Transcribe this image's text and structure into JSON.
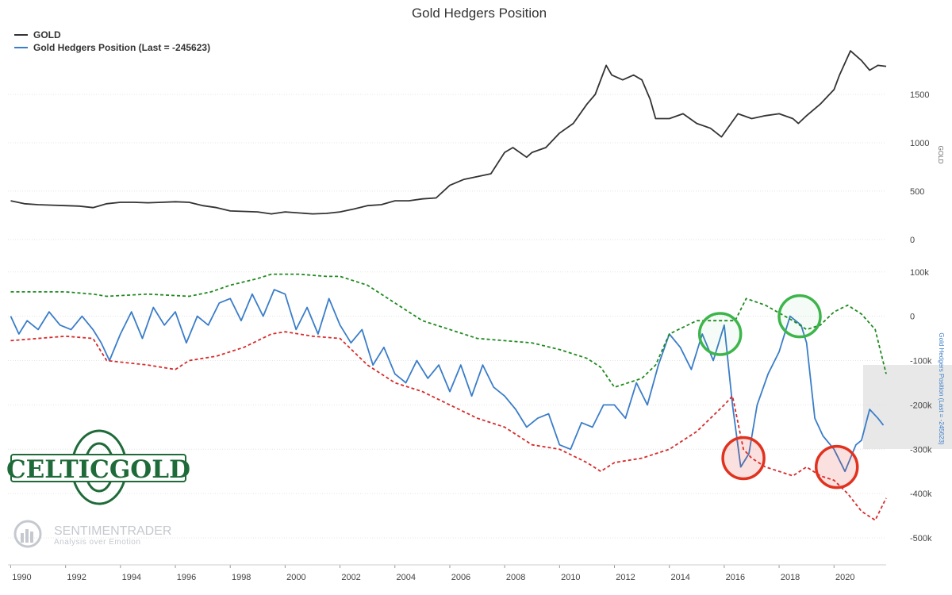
{
  "chart_data": {
    "type": "line",
    "title": "Gold Hedgers Position",
    "legend": [
      {
        "name": "GOLD",
        "color": "#333333"
      },
      {
        "name": "Gold Hedgers Position (Last = -245623)",
        "color": "#3a7dc9"
      }
    ],
    "legend_placement": "top-left",
    "grid": true,
    "x_ticks": [
      "1990",
      "1992",
      "1994",
      "1996",
      "1998",
      "2000",
      "2002",
      "2004",
      "2006",
      "2008",
      "2010",
      "2012",
      "2014",
      "2016",
      "2018",
      "2020"
    ],
    "xlim": [
      1989.9,
      2021.9
    ],
    "panels": [
      {
        "id": "gold",
        "ylabel": "GOLD",
        "ylim": [
          -50,
          2000
        ],
        "y_ticks": [
          "0",
          "500",
          "1000",
          "1500"
        ],
        "series": [
          {
            "name": "GOLD",
            "color": "#333333",
            "x": [
              1990.0,
              1990.5,
              1991.0,
              1991.5,
              1992.0,
              1992.5,
              1993.0,
              1993.5,
              1994.0,
              1994.5,
              1995.0,
              1995.5,
              1996.0,
              1996.5,
              1997.0,
              1997.5,
              1998.0,
              1998.5,
              1999.0,
              1999.5,
              2000.0,
              2000.5,
              2001.0,
              2001.5,
              2002.0,
              2002.5,
              2003.0,
              2003.5,
              2004.0,
              2004.5,
              2005.0,
              2005.5,
              2006.0,
              2006.5,
              2007.0,
              2007.5,
              2008.0,
              2008.3,
              2008.8,
              2009.0,
              2009.5,
              2010.0,
              2010.5,
              2011.0,
              2011.3,
              2011.7,
              2011.9,
              2012.3,
              2012.7,
              2013.0,
              2013.3,
              2013.5,
              2014.0,
              2014.5,
              2015.0,
              2015.5,
              2015.9,
              2016.5,
              2017.0,
              2017.5,
              2018.0,
              2018.5,
              2018.7,
              2019.0,
              2019.5,
              2020.0,
              2020.2,
              2020.6,
              2021.0,
              2021.3,
              2021.6,
              2021.9
            ],
            "y": [
              400,
              370,
              360,
              355,
              350,
              345,
              330,
              370,
              385,
              385,
              380,
              385,
              390,
              385,
              350,
              330,
              295,
              290,
              285,
              265,
              285,
              275,
              265,
              270,
              285,
              315,
              350,
              360,
              400,
              400,
              420,
              430,
              560,
              620,
              650,
              680,
              900,
              950,
              850,
              900,
              950,
              1100,
              1200,
              1400,
              1500,
              1800,
              1700,
              1650,
              1700,
              1650,
              1450,
              1250,
              1250,
              1300,
              1200,
              1150,
              1060,
              1300,
              1250,
              1280,
              1300,
              1250,
              1200,
              1280,
              1400,
              1550,
              1700,
              1950,
              1850,
              1750,
              1800,
              1790
            ]
          }
        ]
      },
      {
        "id": "hedgers",
        "ylabel": "Gold Hedgers Position (Last = -245623)",
        "ylim": [
          -550000,
          130000
        ],
        "y_ticks": [
          "100k",
          "0",
          "-100k",
          "-200k",
          "-300k",
          "-400k",
          "-500k"
        ],
        "last_value_label": "-245623",
        "series": [
          {
            "name": "Gold Hedgers Position (Last = -245623)",
            "color": "#3a7dc9",
            "x": [
              1990.0,
              1990.3,
              1990.6,
              1991.0,
              1991.4,
              1991.8,
              1992.2,
              1992.6,
              1993.0,
              1993.3,
              1993.6,
              1994.0,
              1994.4,
              1994.8,
              1995.2,
              1995.6,
              1996.0,
              1996.4,
              1996.8,
              1997.2,
              1997.6,
              1998.0,
              1998.4,
              1998.8,
              1999.2,
              1999.6,
              2000.0,
              2000.4,
              2000.8,
              2001.2,
              2001.6,
              2002.0,
              2002.4,
              2002.8,
              2003.2,
              2003.6,
              2004.0,
              2004.4,
              2004.8,
              2005.2,
              2005.6,
              2006.0,
              2006.4,
              2006.8,
              2007.2,
              2007.6,
              2008.0,
              2008.4,
              2008.8,
              2009.2,
              2009.6,
              2010.0,
              2010.4,
              2010.8,
              2011.2,
              2011.6,
              2012.0,
              2012.4,
              2012.8,
              2013.2,
              2013.6,
              2014.0,
              2014.4,
              2014.8,
              2015.2,
              2015.6,
              2016.0,
              2016.3,
              2016.6,
              2016.9,
              2017.2,
              2017.6,
              2018.0,
              2018.4,
              2018.8,
              2019.0,
              2019.3,
              2019.6,
              2020.0,
              2020.4,
              2020.8,
              2021.0,
              2021.3,
              2021.6,
              2021.8
            ],
            "y": [
              0,
              -40000,
              -10000,
              -30000,
              10000,
              -20000,
              -30000,
              0,
              -30000,
              -60000,
              -100000,
              -40000,
              10000,
              -50000,
              20000,
              -20000,
              10000,
              -60000,
              0,
              -20000,
              30000,
              40000,
              -10000,
              50000,
              0,
              60000,
              50000,
              -30000,
              20000,
              -40000,
              40000,
              -20000,
              -60000,
              -30000,
              -110000,
              -70000,
              -130000,
              -150000,
              -100000,
              -140000,
              -110000,
              -170000,
              -110000,
              -180000,
              -110000,
              -160000,
              -180000,
              -210000,
              -250000,
              -230000,
              -220000,
              -290000,
              -300000,
              -240000,
              -250000,
              -200000,
              -200000,
              -230000,
              -150000,
              -200000,
              -110000,
              -40000,
              -70000,
              -120000,
              -40000,
              -100000,
              -20000,
              -200000,
              -340000,
              -310000,
              -200000,
              -130000,
              -80000,
              0,
              -20000,
              -60000,
              -230000,
              -270000,
              -300000,
              -350000,
              -290000,
              -280000,
              -210000,
              -230000,
              -245623
            ]
          },
          {
            "name": "upper band",
            "color": "#1f8a1f",
            "x": [
              1990.0,
              1992.0,
              1993.0,
              1993.5,
              1995.0,
              1996.5,
              1997.3,
              1998.0,
              1999.0,
              1999.5,
              2000.5,
              2001.5,
              2002.0,
              2003.0,
              2004.0,
              2005.0,
              2006.0,
              2007.0,
              2008.0,
              2009.0,
              2010.0,
              2011.0,
              2011.5,
              2012.0,
              2012.5,
              2013.0,
              2013.5,
              2014.0,
              2015.0,
              2016.0,
              2016.4,
              2016.8,
              2017.5,
              2018.5,
              2019.0,
              2019.5,
              2020.0,
              2020.5,
              2021.0,
              2021.5,
              2021.9
            ],
            "y": [
              55000,
              55000,
              50000,
              45000,
              50000,
              45000,
              55000,
              70000,
              85000,
              95000,
              95000,
              90000,
              90000,
              70000,
              30000,
              -10000,
              -30000,
              -50000,
              -55000,
              -60000,
              -75000,
              -95000,
              -115000,
              -160000,
              -150000,
              -140000,
              -110000,
              -40000,
              -10000,
              -10000,
              -10000,
              40000,
              25000,
              -10000,
              -30000,
              -20000,
              10000,
              25000,
              5000,
              -30000,
              -130000
            ]
          },
          {
            "name": "lower band",
            "color": "#d62b2b",
            "x": [
              1990.0,
              1992.0,
              1993.0,
              1993.5,
              1995.0,
              1996.0,
              1996.5,
              1997.5,
              1998.5,
              1999.5,
              2000.0,
              2001.0,
              2002.0,
              2003.0,
              2004.0,
              2005.0,
              2006.0,
              2007.0,
              2008.0,
              2009.0,
              2010.0,
              2011.0,
              2011.5,
              2012.0,
              2013.0,
              2014.0,
              2015.0,
              2016.0,
              2016.3,
              2016.7,
              2017.0,
              2017.5,
              2018.5,
              2019.0,
              2019.5,
              2020.0,
              2020.5,
              2021.0,
              2021.5,
              2021.9
            ],
            "y": [
              -55000,
              -45000,
              -50000,
              -100000,
              -110000,
              -120000,
              -100000,
              -90000,
              -70000,
              -40000,
              -35000,
              -45000,
              -50000,
              -110000,
              -150000,
              -170000,
              -200000,
              -230000,
              -250000,
              -290000,
              -300000,
              -330000,
              -350000,
              -330000,
              -320000,
              -300000,
              -260000,
              -200000,
              -180000,
              -300000,
              -320000,
              -340000,
              -360000,
              -340000,
              -360000,
              -370000,
              -400000,
              -440000,
              -460000,
              -410000
            ]
          }
        ]
      }
    ],
    "annotations": [
      {
        "shape": "circle",
        "color": "#3cb54a",
        "x": 2015.85,
        "y": -40000
      },
      {
        "shape": "circle",
        "color": "#3cb54a",
        "x": 2018.75,
        "y": 0
      },
      {
        "shape": "circle",
        "color": "#e0321f",
        "x": 2016.7,
        "y": -320000
      },
      {
        "shape": "circle",
        "color": "#e0321f",
        "x": 2020.1,
        "y": -340000
      }
    ]
  },
  "logos": {
    "celticgold": "CELTICGOLD",
    "sentimentrader_title": "SENTIMENTRADER",
    "sentimentrader_sub": "Analysis over Emotion"
  }
}
